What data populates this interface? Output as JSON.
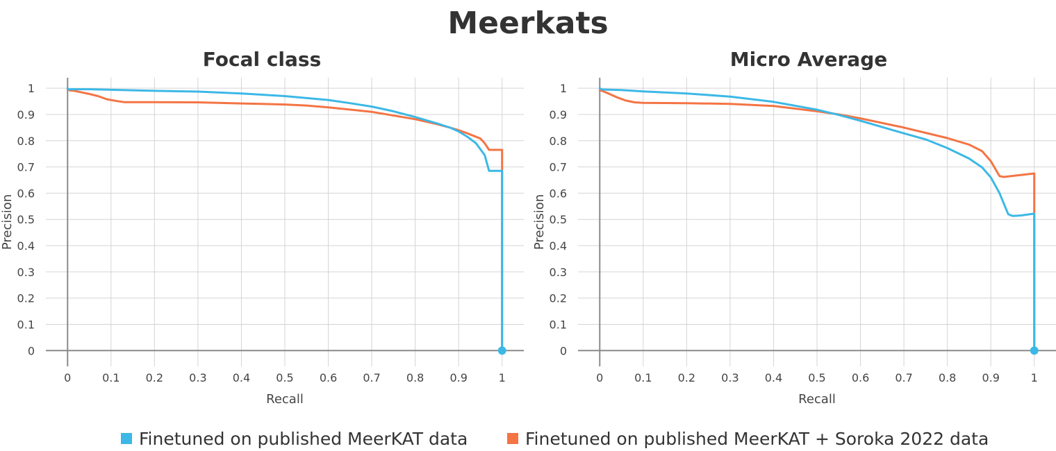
{
  "title": "Meerkats",
  "legend": [
    {
      "label": "Finetuned on published MeerKAT data",
      "color": "#3cb8e6"
    },
    {
      "label": "Finetuned on published MeerKAT  + Soroka 2022 data",
      "color": "#f47444"
    }
  ],
  "chart_data": [
    {
      "type": "line",
      "title": "Focal class",
      "xlabel": "Recall",
      "ylabel": "Precision",
      "xlim": [
        -0.05,
        1.05
      ],
      "ylim": [
        -0.06,
        1.04
      ],
      "xticks": [
        "0",
        "0.1",
        "0.2",
        "0.3",
        "0.4",
        "0.5",
        "0.6",
        "0.7",
        "0.8",
        "0.9",
        "1"
      ],
      "yticks": [
        "0",
        "0.1",
        "0.2",
        "0.3",
        "0.4",
        "0.5",
        "0.6",
        "0.7",
        "0.8",
        "0.9",
        "1"
      ],
      "grid": true,
      "series": [
        {
          "name": "Finetuned on published MeerKAT data",
          "color": "#3cb8e6",
          "x": [
            0,
            0.003,
            0.01,
            0.05,
            0.1,
            0.2,
            0.3,
            0.4,
            0.5,
            0.6,
            0.65,
            0.7,
            0.75,
            0.8,
            0.85,
            0.88,
            0.9,
            0.92,
            0.94,
            0.96,
            0.97,
            0.98,
            0.99,
            1.0,
            1.0
          ],
          "y": [
            1.0,
            0.995,
            0.996,
            0.996,
            0.994,
            0.99,
            0.987,
            0.98,
            0.97,
            0.955,
            0.943,
            0.93,
            0.912,
            0.89,
            0.866,
            0.85,
            0.835,
            0.815,
            0.79,
            0.745,
            0.685,
            0.685,
            0.685,
            0.685,
            0.0
          ]
        },
        {
          "name": "Finetuned on published MeerKAT  + Soroka 2022 data",
          "color": "#f47444",
          "x": [
            0,
            0.005,
            0.015,
            0.03,
            0.05,
            0.07,
            0.09,
            0.11,
            0.13,
            0.2,
            0.3,
            0.4,
            0.5,
            0.55,
            0.6,
            0.7,
            0.8,
            0.85,
            0.88,
            0.9,
            0.92,
            0.95,
            0.96,
            0.97,
            0.98,
            0.99,
            1.0,
            1.0
          ],
          "y": [
            0.995,
            0.992,
            0.99,
            0.985,
            0.978,
            0.97,
            0.958,
            0.952,
            0.947,
            0.947,
            0.946,
            0.942,
            0.938,
            0.934,
            0.927,
            0.91,
            0.882,
            0.863,
            0.85,
            0.84,
            0.828,
            0.808,
            0.79,
            0.765,
            0.765,
            0.765,
            0.765,
            0.0
          ]
        }
      ],
      "markers": [
        {
          "x": 1,
          "y": 0,
          "color": "#3cb8e6"
        }
      ]
    },
    {
      "type": "line",
      "title": "Micro Average",
      "xlabel": "Recall",
      "ylabel": "Precision",
      "xlim": [
        -0.05,
        1.05
      ],
      "ylim": [
        -0.06,
        1.04
      ],
      "xticks": [
        "0",
        "0.1",
        "0.2",
        "0.3",
        "0.4",
        "0.5",
        "0.6",
        "0.7",
        "0.8",
        "0.9",
        "1"
      ],
      "yticks": [
        "0",
        "0.1",
        "0.2",
        "0.3",
        "0.4",
        "0.5",
        "0.6",
        "0.7",
        "0.8",
        "0.9",
        "1"
      ],
      "grid": true,
      "series": [
        {
          "name": "Finetuned on published MeerKAT data",
          "color": "#3cb8e6",
          "x": [
            0,
            0.005,
            0.05,
            0.1,
            0.2,
            0.3,
            0.4,
            0.5,
            0.55,
            0.6,
            0.7,
            0.75,
            0.8,
            0.85,
            0.88,
            0.9,
            0.92,
            0.94,
            0.95,
            0.97,
            1.0,
            1.0
          ],
          "y": [
            1.0,
            0.995,
            0.993,
            0.988,
            0.98,
            0.968,
            0.948,
            0.918,
            0.898,
            0.876,
            0.828,
            0.805,
            0.772,
            0.732,
            0.698,
            0.66,
            0.6,
            0.52,
            0.513,
            0.515,
            0.522,
            0.0
          ]
        },
        {
          "name": "Finetuned on published MeerKAT  + Soroka 2022 data",
          "color": "#f47444",
          "x": [
            0,
            0.005,
            0.02,
            0.04,
            0.06,
            0.08,
            0.1,
            0.2,
            0.3,
            0.4,
            0.5,
            0.55,
            0.6,
            0.7,
            0.8,
            0.85,
            0.88,
            0.9,
            0.92,
            0.93,
            1.0,
            1.0
          ],
          "y": [
            0.993,
            0.99,
            0.98,
            0.965,
            0.953,
            0.946,
            0.944,
            0.943,
            0.94,
            0.932,
            0.912,
            0.9,
            0.885,
            0.85,
            0.81,
            0.785,
            0.76,
            0.722,
            0.665,
            0.662,
            0.675,
            0.0
          ]
        }
      ],
      "markers": [
        {
          "x": 1,
          "y": 0,
          "color": "#3cb8e6"
        }
      ]
    }
  ]
}
